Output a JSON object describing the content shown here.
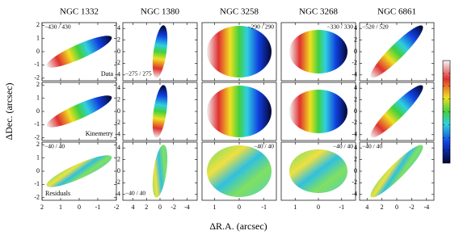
{
  "figure": {
    "xlabel": "ΔR.A. (arcsec)",
    "ylabel": "ΔDec. (arcsec)",
    "row_labels": [
      "Data",
      "Kinemetry",
      "Residuals"
    ],
    "panels": [
      {
        "title": "NGC 1332",
        "xlim": [
          2,
          -2
        ],
        "xticks": [
          2,
          1,
          0,
          -1,
          -2
        ],
        "ylim": [
          -2.2,
          2.2
        ],
        "yticks": [
          -2,
          -1,
          0,
          1,
          2
        ],
        "data_range": "−430 / 430",
        "residual_range": "−40 / 40"
      },
      {
        "title": "NGC 1380",
        "xlim": [
          5.5,
          -5.5
        ],
        "xticks": [
          4,
          2,
          0,
          -2,
          -4
        ],
        "ylim": [
          -5,
          5
        ],
        "yticks": [
          -4,
          -2,
          0,
          2,
          4
        ],
        "data_range": "−275 / 275",
        "residual_range": "−40 / 40"
      },
      {
        "title": "NGC 3258",
        "xlim": [
          1.5,
          -1.5
        ],
        "xticks": [
          1,
          0,
          -1
        ],
        "data_range": "−290 / 290",
        "residual_range": "−40 / 40"
      },
      {
        "title": "NGC 3268",
        "xlim": [
          1.6,
          -1.6
        ],
        "xticks": [
          1,
          0,
          -1
        ],
        "data_range": "−330 / 330",
        "residual_range": "−40 / 40"
      },
      {
        "title": "NGC 6861",
        "xlim": [
          5,
          -5
        ],
        "xticks": [
          4,
          2,
          0,
          -2,
          -4
        ],
        "ylim": [
          -5,
          5
        ],
        "yticks": [
          -4,
          -2,
          0,
          2,
          4
        ],
        "data_range": "−520 / 520",
        "residual_range": "−40 / 40"
      }
    ]
  }
}
